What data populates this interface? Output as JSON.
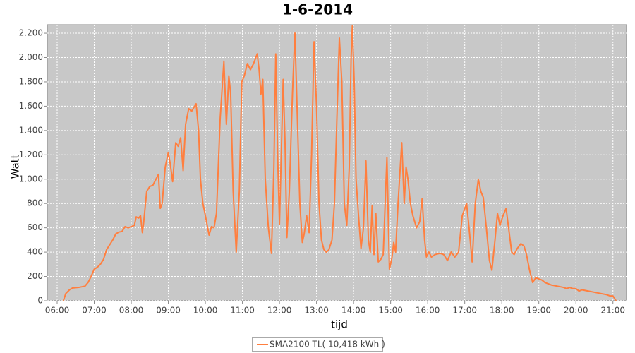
{
  "chart_data": {
    "type": "line",
    "title": "1-6-2014",
    "x_label": "tijd",
    "y_label": "Watt",
    "x": [
      "06:10",
      "06:14",
      "06:20",
      "06:25",
      "06:35",
      "06:45",
      "06:50",
      "06:55",
      "07:00",
      "07:05",
      "07:10",
      "07:15",
      "07:20",
      "07:25",
      "07:30",
      "07:35",
      "07:40",
      "07:45",
      "07:50",
      "07:55",
      "08:00",
      "08:05",
      "08:08",
      "08:12",
      "08:15",
      "08:18",
      "08:20",
      "08:25",
      "08:30",
      "08:35",
      "08:40",
      "08:44",
      "08:47",
      "08:50",
      "08:55",
      "09:00",
      "09:03",
      "09:07",
      "09:12",
      "09:16",
      "09:20",
      "09:24",
      "09:28",
      "09:33",
      "09:38",
      "09:45",
      "09:49",
      "09:52",
      "09:56",
      "10:00",
      "10:06",
      "10:10",
      "10:14",
      "10:18",
      "10:24",
      "10:30",
      "10:34",
      "10:38",
      "10:41",
      "10:45",
      "10:50",
      "10:55",
      "10:59",
      "11:03",
      "11:08",
      "11:13",
      "11:18",
      "11:24",
      "11:27",
      "11:30",
      "11:33",
      "11:37",
      "11:42",
      "11:47",
      "11:51",
      "11:54",
      "11:57",
      "12:00",
      "12:06",
      "12:09",
      "12:12",
      "12:16",
      "12:21",
      "12:25",
      "12:29",
      "12:33",
      "12:37",
      "12:40",
      "12:44",
      "12:48",
      "12:52",
      "12:56",
      "13:00",
      "13:04",
      "13:08",
      "13:12",
      "13:16",
      "13:20",
      "13:25",
      "13:29",
      "13:33",
      "13:37",
      "13:41",
      "13:45",
      "13:49",
      "13:53",
      "13:56",
      "13:58",
      "14:01",
      "14:04",
      "14:08",
      "14:12",
      "14:16",
      "14:20",
      "14:24",
      "14:27",
      "14:30",
      "14:33",
      "14:36",
      "14:40",
      "14:44",
      "14:48",
      "14:54",
      "14:58",
      "15:02",
      "15:05",
      "15:08",
      "15:12",
      "15:18",
      "15:22",
      "15:25",
      "15:28",
      "15:32",
      "15:36",
      "15:42",
      "15:47",
      "15:51",
      "15:55",
      "15:58",
      "16:02",
      "16:06",
      "16:12",
      "16:20",
      "16:26",
      "16:32",
      "16:38",
      "16:44",
      "16:50",
      "16:56",
      "17:03",
      "17:07",
      "17:12",
      "17:17",
      "17:22",
      "17:26",
      "17:30",
      "17:35",
      "17:40",
      "17:44",
      "17:49",
      "17:53",
      "17:57",
      "18:02",
      "18:07",
      "18:11",
      "18:16",
      "18:20",
      "18:25",
      "18:31",
      "18:36",
      "18:40",
      "18:45",
      "18:50",
      "18:55",
      "19:00",
      "19:05",
      "19:10",
      "19:20",
      "19:30",
      "19:40",
      "19:45",
      "19:50",
      "19:55",
      "20:00",
      "20:05",
      "20:10",
      "20:20",
      "20:30",
      "20:40",
      "20:50",
      "20:55",
      "21:00",
      "21:05"
    ],
    "series": [
      {
        "name": "SMA2100 TL( 10,418 kWh )",
        "color": "#ff7f3f",
        "values": [
          0,
          60,
          90,
          105,
          110,
          120,
          150,
          200,
          260,
          275,
          300,
          340,
          420,
          460,
          500,
          550,
          565,
          570,
          610,
          600,
          610,
          620,
          690,
          680,
          700,
          560,
          640,
          900,
          940,
          950,
          1000,
          1040,
          760,
          800,
          1100,
          1220,
          1130,
          980,
          1300,
          1270,
          1340,
          1070,
          1450,
          1580,
          1560,
          1620,
          1400,
          1000,
          800,
          700,
          540,
          610,
          600,
          720,
          1500,
          1970,
          1450,
          1850,
          1700,
          900,
          400,
          900,
          1800,
          1850,
          1950,
          1900,
          1950,
          2030,
          1900,
          1700,
          1820,
          1000,
          600,
          390,
          1100,
          2030,
          1200,
          630,
          1820,
          1300,
          520,
          900,
          1700,
          2200,
          1500,
          800,
          480,
          550,
          700,
          560,
          1200,
          2130,
          1600,
          800,
          500,
          420,
          400,
          420,
          500,
          800,
          1500,
          2160,
          1800,
          800,
          620,
          1100,
          2000,
          2260,
          1800,
          1000,
          700,
          430,
          600,
          1150,
          500,
          400,
          780,
          380,
          720,
          320,
          340,
          380,
          1180,
          260,
          350,
          480,
          400,
          800,
          1300,
          800,
          1100,
          1000,
          800,
          700,
          600,
          650,
          840,
          500,
          360,
          400,
          360,
          380,
          390,
          380,
          330,
          400,
          360,
          400,
          700,
          800,
          600,
          320,
          800,
          1000,
          900,
          850,
          600,
          330,
          250,
          500,
          720,
          620,
          700,
          760,
          600,
          400,
          380,
          430,
          470,
          450,
          380,
          250,
          150,
          190,
          180,
          170,
          150,
          130,
          120,
          110,
          100,
          110,
          100,
          100,
          80,
          90,
          80,
          70,
          60,
          50,
          40,
          40,
          0
        ]
      }
    ],
    "xlim": [
      "05:44",
      "21:22"
    ],
    "xticks": [
      "06:00",
      "07:00",
      "08:00",
      "09:00",
      "10:00",
      "11:00",
      "12:00",
      "13:00",
      "14:00",
      "15:00",
      "16:00",
      "17:00",
      "18:00",
      "19:00",
      "20:00",
      "21:00"
    ],
    "ylim": [
      0,
      2270
    ],
    "yticks": [
      0,
      {
        "value": 200,
        "label": "200"
      },
      {
        "value": 400,
        "label": "400"
      },
      {
        "value": 600,
        "label": "600"
      },
      {
        "value": 800,
        "label": "800"
      },
      {
        "value": 1000,
        "label": "1.000"
      },
      {
        "value": 1200,
        "label": "1.200"
      },
      {
        "value": 1400,
        "label": "1.400"
      },
      {
        "value": 1600,
        "label": "1.600"
      },
      {
        "value": 1800,
        "label": "1.800"
      },
      {
        "value": 2000,
        "label": "2.000"
      },
      {
        "value": 2200,
        "label": "2.200"
      }
    ],
    "grid": true,
    "legend": "bottom"
  }
}
